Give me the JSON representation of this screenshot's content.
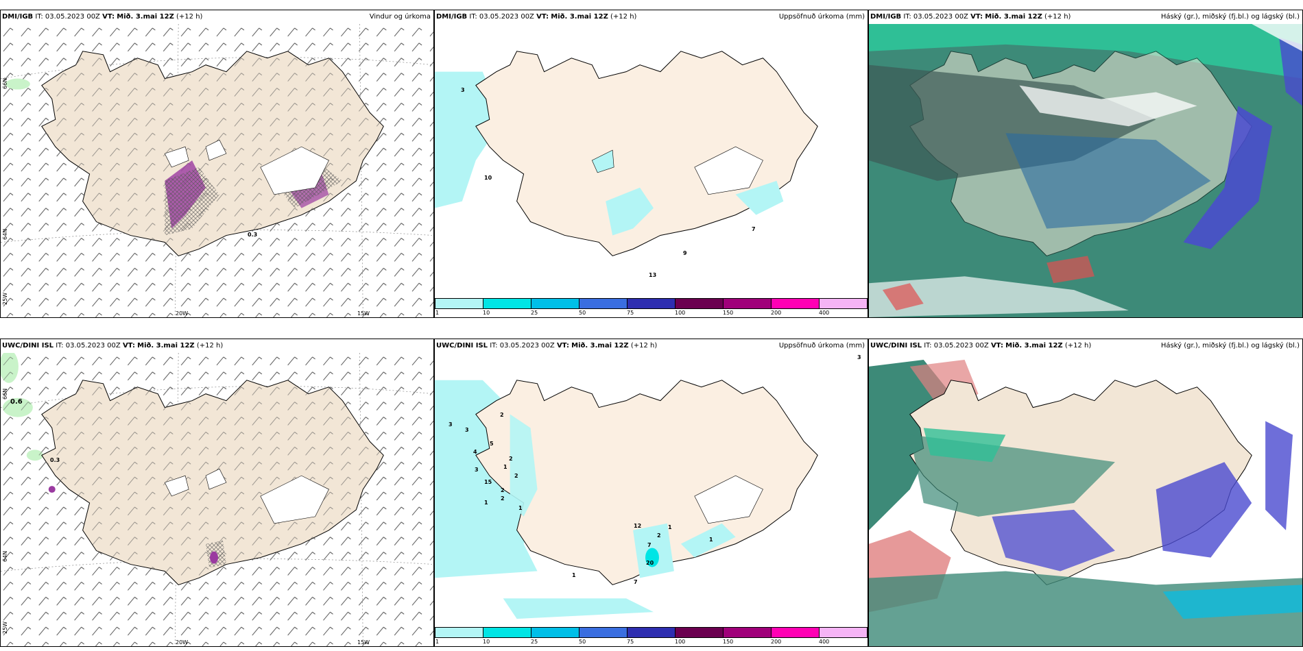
{
  "rows": [
    {
      "panels": [
        {
          "model": "DMI/IGB",
          "it_label": "IT:",
          "it_value": "03.05.2023 00Z",
          "vt_label": "VT:",
          "vt_value": "Mið. 3.mai 12Z",
          "lead": "(+12 h)",
          "field": "Vindur og úrkoma"
        },
        {
          "model": "DMI/IGB",
          "it_label": "IT:",
          "it_value": "03.05.2023 00Z",
          "vt_label": "VT:",
          "vt_value": "Mið. 3.mai 12Z",
          "lead": "(+12 h)",
          "field": "Uppsöfnuð úrkoma (mm)"
        },
        {
          "model": "DMI/IGB",
          "it_label": "IT:",
          "it_value": "03.05.2023 00Z",
          "vt_label": "VT:",
          "vt_value": "Mið. 3.mai 12Z",
          "lead": "(+12 h)",
          "field": "Háský (gr.), miðský (fj.bl.) og lágský (bl.)"
        }
      ]
    },
    {
      "panels": [
        {
          "model": "UWC/DINI ISL",
          "it_label": "IT:",
          "it_value": "03.05.2023 00Z",
          "vt_label": "VT:",
          "vt_value": "Mið. 3.mai 12Z",
          "lead": "(+12 h)",
          "field": ""
        },
        {
          "model": "UWC/DINI ISL",
          "it_label": "IT:",
          "it_value": "03.05.2023 00Z",
          "vt_label": "VT:",
          "vt_value": "Mið. 3.mai 12Z",
          "lead": "(+12 h)",
          "field": "Uppsöfnuð úrkoma (mm)"
        },
        {
          "model": "UWC/DINI ISL",
          "it_label": "IT:",
          "it_value": "03.05.2023 00Z",
          "vt_label": "VT:",
          "vt_value": "Mið. 3.mai 12Z",
          "lead": "(+12 h)",
          "field": "Háský (gr.), miðský (fj.bl.) og lágský (bl.)"
        }
      ]
    }
  ],
  "axes": {
    "lon_20": "20W",
    "lon_15": "15W",
    "lat_66": "66N",
    "lat_64": "64N",
    "lon_25": "25W"
  },
  "colorbar": {
    "ticks": [
      "1",
      "10",
      "25",
      "50",
      "75",
      "100",
      "150",
      "200",
      "400"
    ],
    "colors": [
      "#b3f5f5",
      "#00e5e5",
      "#00bfe8",
      "#3a6ee0",
      "#2e2eb0",
      "#6b0050",
      "#a0007a",
      "#ff00b4",
      "#f5b4f5"
    ]
  },
  "top_precip_values": [
    "3",
    "10",
    "9",
    "13",
    "7"
  ],
  "bottom_precip_values": [
    "3",
    "2",
    "3",
    "5",
    "4",
    "2",
    "1",
    "3",
    "15",
    "2",
    "2",
    "2",
    "1",
    "1",
    "12",
    "7",
    "2",
    "1",
    "1",
    "20",
    "7",
    "1",
    "3"
  ],
  "wind_values": {
    "top": "0.3",
    "bottom_a": "0.6",
    "bottom_b": "0.3"
  },
  "colors": {
    "land": "#f2e6d6",
    "sea_precip": "#b3f5f5",
    "cloud_high": "#2fbf96",
    "cloud_mid": "#3d6e6a",
    "cloud_low": "#4a4ad0",
    "precip_purple": "#9a3aa0"
  }
}
